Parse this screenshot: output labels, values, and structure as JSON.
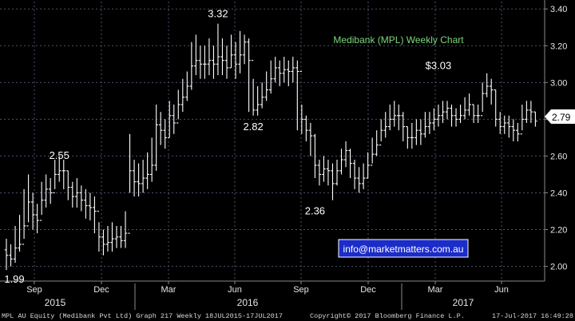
{
  "chart_data": {
    "type": "ohlc",
    "title": "Medibank (MPL) Weekly Chart",
    "instrument": "MPL AU Equity (Medibank Pvt Ltd) Graph 217  Weekly 18JUL2015-17JUL2017",
    "ylim": [
      1.92,
      3.44
    ],
    "y_ticks": [
      "2.00",
      "2.20",
      "2.40",
      "2.60",
      "2.80",
      "3.00",
      "3.20",
      "3.40"
    ],
    "x_ticks": [
      "Sep",
      "Dec",
      "Mar",
      "Jun",
      "Sep",
      "Dec",
      "Mar",
      "Jun"
    ],
    "years": [
      "2015",
      "2016",
      "2017"
    ],
    "last_price": "2.79",
    "annotations": [
      {
        "text": "3.32",
        "week": 48,
        "value": 3.32
      },
      {
        "text": "2.55",
        "week": 12,
        "value": 2.55
      },
      {
        "text": "2.82",
        "week": 56,
        "value": 2.82
      },
      {
        "text": "2.36",
        "week": 70,
        "value": 2.36
      },
      {
        "text": "$3.03",
        "week": 98,
        "value": 3.03
      },
      {
        "text": "1.99",
        "week": 0,
        "value": 1.99
      }
    ],
    "close": [
      2.06,
      2.04,
      2.1,
      2.12,
      2.22,
      2.35,
      2.28,
      2.25,
      2.36,
      2.42,
      2.4,
      2.5,
      2.52,
      2.52,
      2.43,
      2.38,
      2.4,
      2.36,
      2.33,
      2.32,
      2.3,
      2.16,
      2.12,
      2.13,
      2.15,
      2.16,
      2.14,
      2.18,
      2.52,
      2.46,
      2.45,
      2.48,
      2.5,
      2.55,
      2.77,
      2.74,
      2.7,
      2.82,
      2.78,
      2.88,
      2.92,
      2.98,
      3.09,
      3.12,
      3.1,
      3.1,
      3.12,
      3.1,
      3.14,
      3.12,
      3.08,
      3.15,
      3.1,
      3.15,
      3.22,
      3.12,
      2.85,
      2.88,
      2.92,
      2.96,
      3.02,
      3.08,
      3.05,
      3.07,
      3.06,
      3.08,
      3.06,
      2.8,
      2.74,
      2.71,
      2.55,
      2.5,
      2.53,
      2.52,
      2.45,
      2.52,
      2.58,
      2.63,
      2.56,
      2.48,
      2.45,
      2.48,
      2.55,
      2.61,
      2.66,
      2.74,
      2.76,
      2.8,
      2.82,
      2.82,
      2.76,
      2.7,
      2.7,
      2.74,
      2.72,
      2.76,
      2.78,
      2.8,
      2.82,
      2.84,
      2.86,
      2.82,
      2.8,
      2.82,
      2.85,
      2.88,
      2.82,
      2.82,
      2.94,
      2.98,
      2.96,
      2.8,
      2.76,
      2.78,
      2.76,
      2.74,
      2.72,
      2.8,
      2.85,
      2.84,
      2.79
    ],
    "hl": [
      [
        1.98,
        2.15
      ],
      [
        2.0,
        2.12
      ],
      [
        2.02,
        2.22
      ],
      [
        2.08,
        2.28
      ],
      [
        2.15,
        2.42
      ],
      [
        2.24,
        2.5
      ],
      [
        2.2,
        2.4
      ],
      [
        2.18,
        2.34
      ],
      [
        2.28,
        2.46
      ],
      [
        2.32,
        2.5
      ],
      [
        2.34,
        2.48
      ],
      [
        2.42,
        2.58
      ],
      [
        2.46,
        2.6
      ],
      [
        2.42,
        2.58
      ],
      [
        2.36,
        2.52
      ],
      [
        2.32,
        2.46
      ],
      [
        2.32,
        2.48
      ],
      [
        2.3,
        2.44
      ],
      [
        2.26,
        2.42
      ],
      [
        2.25,
        2.4
      ],
      [
        2.18,
        2.38
      ],
      [
        2.08,
        2.24
      ],
      [
        2.06,
        2.2
      ],
      [
        2.08,
        2.22
      ],
      [
        2.08,
        2.24
      ],
      [
        2.1,
        2.22
      ],
      [
        2.1,
        2.22
      ],
      [
        2.1,
        2.3
      ],
      [
        2.4,
        2.72
      ],
      [
        2.38,
        2.58
      ],
      [
        2.38,
        2.56
      ],
      [
        2.4,
        2.58
      ],
      [
        2.42,
        2.62
      ],
      [
        2.46,
        2.7
      ],
      [
        2.52,
        2.88
      ],
      [
        2.66,
        2.84
      ],
      [
        2.64,
        2.8
      ],
      [
        2.7,
        2.9
      ],
      [
        2.72,
        2.88
      ],
      [
        2.8,
        2.96
      ],
      [
        2.84,
        3.02
      ],
      [
        2.9,
        3.06
      ],
      [
        2.96,
        3.22
      ],
      [
        3.04,
        3.26
      ],
      [
        3.02,
        3.2
      ],
      [
        3.02,
        3.2
      ],
      [
        3.04,
        3.24
      ],
      [
        3.02,
        3.2
      ],
      [
        3.04,
        3.32
      ],
      [
        3.04,
        3.24
      ],
      [
        3.02,
        3.2
      ],
      [
        3.08,
        3.26
      ],
      [
        3.02,
        3.22
      ],
      [
        3.05,
        3.28
      ],
      [
        3.1,
        3.26
      ],
      [
        2.84,
        3.24
      ],
      [
        2.82,
        3.02
      ],
      [
        2.82,
        2.98
      ],
      [
        2.86,
        3.0
      ],
      [
        2.9,
        3.06
      ],
      [
        2.94,
        3.12
      ],
      [
        3.0,
        3.14
      ],
      [
        2.98,
        3.12
      ],
      [
        3.0,
        3.14
      ],
      [
        2.98,
        3.12
      ],
      [
        3.0,
        3.14
      ],
      [
        2.74,
        3.12
      ],
      [
        2.72,
        2.88
      ],
      [
        2.68,
        2.82
      ],
      [
        2.6,
        2.78
      ],
      [
        2.48,
        2.72
      ],
      [
        2.44,
        2.58
      ],
      [
        2.46,
        2.6
      ],
      [
        2.44,
        2.58
      ],
      [
        2.36,
        2.56
      ],
      [
        2.44,
        2.58
      ],
      [
        2.5,
        2.64
      ],
      [
        2.54,
        2.68
      ],
      [
        2.48,
        2.64
      ],
      [
        2.42,
        2.58
      ],
      [
        2.4,
        2.54
      ],
      [
        2.42,
        2.56
      ],
      [
        2.48,
        2.62
      ],
      [
        2.56,
        2.7
      ],
      [
        2.6,
        2.74
      ],
      [
        2.68,
        2.8
      ],
      [
        2.7,
        2.84
      ],
      [
        2.74,
        2.88
      ],
      [
        2.76,
        2.9
      ],
      [
        2.74,
        2.88
      ],
      [
        2.68,
        2.84
      ],
      [
        2.64,
        2.76
      ],
      [
        2.64,
        2.78
      ],
      [
        2.66,
        2.8
      ],
      [
        2.66,
        2.8
      ],
      [
        2.7,
        2.84
      ],
      [
        2.72,
        2.84
      ],
      [
        2.74,
        2.86
      ],
      [
        2.76,
        2.88
      ],
      [
        2.78,
        2.9
      ],
      [
        2.8,
        2.9
      ],
      [
        2.76,
        2.88
      ],
      [
        2.76,
        2.86
      ],
      [
        2.78,
        2.88
      ],
      [
        2.8,
        2.92
      ],
      [
        2.82,
        2.94
      ],
      [
        2.78,
        2.88
      ],
      [
        2.78,
        2.88
      ],
      [
        2.84,
        3.0
      ],
      [
        2.92,
        3.05
      ],
      [
        2.88,
        3.02
      ],
      [
        2.76,
        2.96
      ],
      [
        2.72,
        2.84
      ],
      [
        2.72,
        2.82
      ],
      [
        2.7,
        2.82
      ],
      [
        2.68,
        2.8
      ],
      [
        2.68,
        2.78
      ],
      [
        2.74,
        2.88
      ],
      [
        2.78,
        2.9
      ],
      [
        2.78,
        2.9
      ],
      [
        2.76,
        2.84
      ]
    ],
    "grid": true,
    "legend": "none"
  },
  "watermark": {
    "email": "info@marketmatters.com.au"
  },
  "footer": {
    "left": "MPL AU Equity (Medibank Pvt Ltd) Graph 217  Weekly 18JUL2015-17JUL2017",
    "center": "Copyright© 2017 Bloomberg Finance L.P.",
    "right": "17-Jul-2017 16:49:28"
  },
  "colors": {
    "background": "#000000",
    "bar": "#ffffff",
    "grid": "#4f4f6b",
    "title": "#7cd67c",
    "email_box": "#1b2cc9",
    "price_tag": "#ffffff"
  }
}
